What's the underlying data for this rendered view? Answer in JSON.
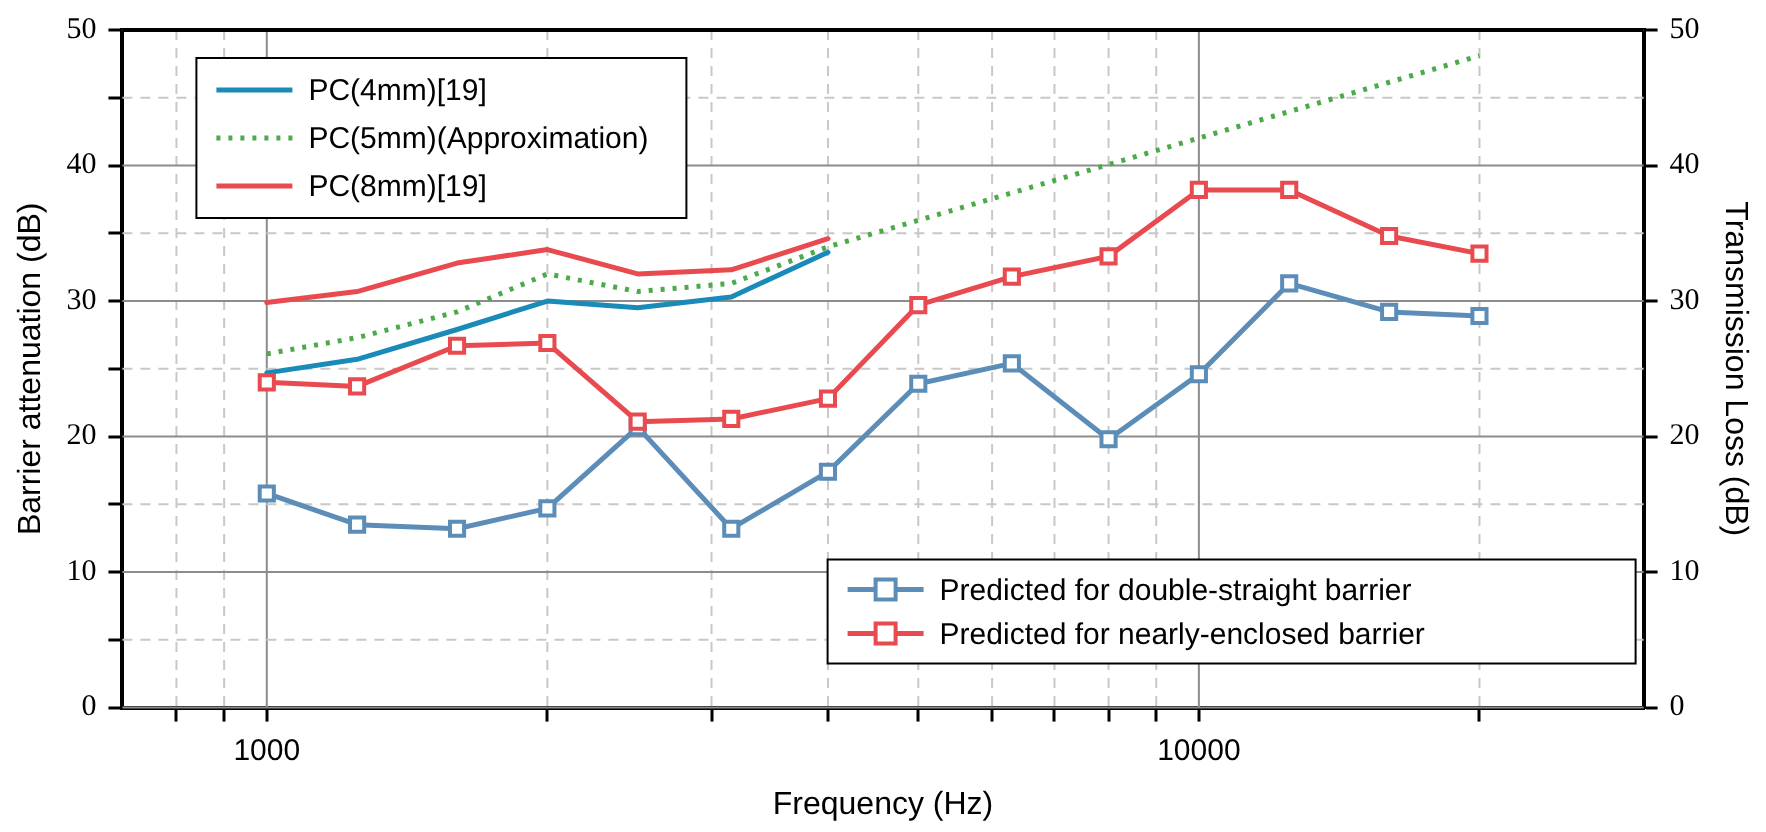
{
  "chart_data": {
    "type": "line",
    "xlabel": "Frequency (Hz)",
    "ylabel": "Barrier attenuation (dB)",
    "y2label": "Transmission Loss (dB)",
    "log": "x",
    "grid": true,
    "legend": "top left",
    "xlim": [
      700,
      30000
    ],
    "xticks": [
      {
        "value": 800,
        "label": null
      },
      {
        "value": 900,
        "label": null
      },
      1000,
      {
        "value": 2000,
        "label": null
      },
      {
        "value": 3000,
        "label": null
      },
      {
        "value": 4000,
        "label": null
      },
      {
        "value": 5000,
        "label": null
      },
      {
        "value": 6000,
        "label": null
      },
      {
        "value": 7000,
        "label": null
      },
      {
        "value": 8000,
        "label": null
      },
      {
        "value": 9000,
        "label": null
      },
      10000,
      {
        "value": 20000,
        "label": null
      }
    ],
    "ylim": [
      0,
      50
    ],
    "yticks": [
      0,
      {
        "value": 5,
        "label": null
      },
      10,
      {
        "value": 15,
        "label": null
      },
      20,
      {
        "value": 25,
        "label": null
      },
      30,
      {
        "value": 35,
        "label": null
      },
      40,
      {
        "value": 45,
        "label": null
      },
      50
    ],
    "y2lim": [
      0,
      50
    ],
    "y2ticks": [
      0,
      10,
      20,
      30,
      40,
      50
    ],
    "series": [
      {
        "name": "PC(4mm)[19]",
        "color": "#1a8ab8",
        "marker": "none",
        "line_style": "solid",
        "x": [
          1000,
          1250,
          1600,
          2000,
          2500,
          3150,
          4000
        ],
        "values": [
          24.7,
          25.7,
          27.9,
          30.0,
          29.5,
          30.3,
          33.6
        ]
      },
      {
        "name": "PC(5mm)(Approximation)",
        "color": "#4caa4c",
        "marker": "none",
        "line_style": "dotted",
        "x": [
          1000,
          1250,
          1600,
          2000,
          2500,
          3150,
          4000,
          20000
        ],
        "values": [
          26.1,
          27.3,
          29.2,
          32.0,
          30.7,
          31.3,
          34.0,
          48.1
        ]
      },
      {
        "name": "PC(8mm)[19]",
        "color": "#e84a4f",
        "marker": "none",
        "line_style": "solid",
        "x": [
          1000,
          1250,
          1600,
          2000,
          2500,
          3150,
          4000
        ],
        "values": [
          29.9,
          30.7,
          32.8,
          33.8,
          32.0,
          32.3,
          34.6
        ]
      },
      {
        "name": "Predicted for double-straight barrier",
        "color": "#5b8db8",
        "marker": "square",
        "line_style": "solid",
        "x": [
          1000,
          1250,
          1600,
          2000,
          2500,
          3150,
          4000,
          5000,
          6300,
          8000,
          10000,
          12500,
          16000,
          20000
        ],
        "values": [
          15.8,
          13.5,
          13.2,
          14.7,
          20.7,
          13.2,
          17.4,
          23.9,
          25.4,
          19.8,
          24.6,
          31.3,
          29.2,
          28.9
        ]
      },
      {
        "name": "Predicted for nearly-enclosed barrier",
        "color": "#e84a4f",
        "marker": "square",
        "line_style": "solid",
        "x": [
          1000,
          1250,
          1600,
          2000,
          2500,
          3150,
          4000,
          5000,
          6300,
          8000,
          10000,
          12500,
          16000,
          20000
        ],
        "values": [
          24.0,
          23.7,
          26.7,
          26.9,
          21.1,
          21.3,
          22.8,
          29.7,
          31.8,
          33.3,
          38.2,
          38.2,
          34.8,
          33.5
        ]
      }
    ]
  }
}
